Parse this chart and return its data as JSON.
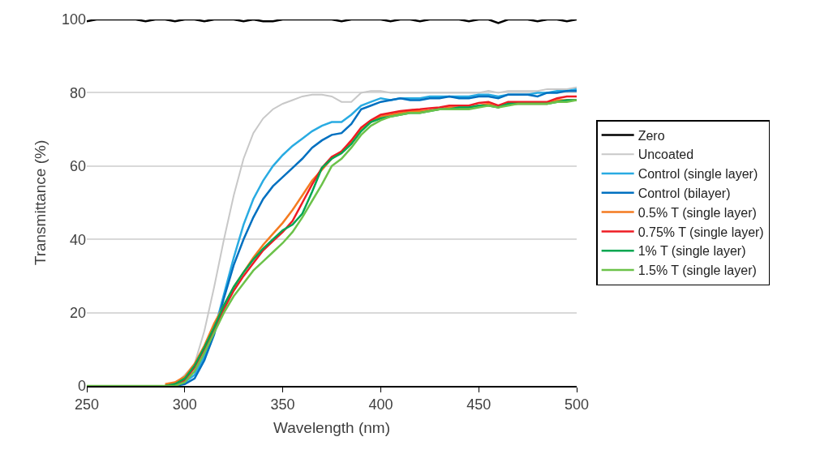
{
  "chart_data": {
    "type": "line",
    "xlabel": "Wavelength (nm)",
    "ylabel": "Transmittance (%)",
    "x": [
      250,
      255,
      260,
      265,
      270,
      275,
      280,
      285,
      290,
      295,
      300,
      305,
      310,
      315,
      320,
      325,
      330,
      335,
      340,
      345,
      350,
      355,
      360,
      365,
      370,
      375,
      380,
      385,
      390,
      395,
      400,
      405,
      410,
      415,
      420,
      425,
      430,
      435,
      440,
      445,
      450,
      455,
      460,
      465,
      470,
      475,
      480,
      485,
      490,
      495,
      500
    ],
    "xlim": [
      250,
      500
    ],
    "xticks": [
      250,
      300,
      350,
      400,
      450,
      500
    ],
    "ylim": [
      0,
      100
    ],
    "yticks": [
      0,
      20,
      40,
      60,
      80,
      100
    ],
    "grid": "y",
    "legend": "right",
    "marker": "none",
    "line_style": "solid",
    "series": [
      {
        "name": "Zero",
        "color": "#000000",
        "values": [
          99.5,
          100,
          100,
          100,
          100,
          100,
          99.5,
          100,
          100,
          99.5,
          100,
          100,
          99.5,
          100,
          100,
          100,
          99.5,
          100,
          99.5,
          99.5,
          100,
          100,
          100,
          100,
          100,
          100,
          99.5,
          100,
          100,
          100,
          100,
          99.5,
          100,
          100,
          99.5,
          100,
          100,
          100,
          100,
          99.5,
          100,
          100,
          99,
          100,
          100,
          100,
          99.5,
          100,
          100,
          99.5,
          100
        ]
      },
      {
        "name": "Uncoated",
        "color": "#c8c8c8",
        "values": [
          null,
          null,
          null,
          null,
          null,
          null,
          null,
          null,
          0,
          0.5,
          3,
          6,
          15,
          27,
          40,
          52,
          62,
          69,
          73,
          75.5,
          77,
          78,
          79,
          79.5,
          79.5,
          79,
          77.5,
          77.5,
          80,
          80.5,
          80.5,
          80,
          80,
          80,
          80,
          80,
          80,
          80,
          80,
          80,
          80,
          80.5,
          80,
          80.5,
          80.5,
          80.5,
          80.5,
          81,
          81,
          81,
          81.5
        ]
      },
      {
        "name": "Control (single layer)",
        "color": "#29abe2",
        "values": [
          null,
          null,
          null,
          null,
          null,
          null,
          null,
          null,
          0,
          0,
          1,
          3,
          8,
          15,
          25,
          35,
          44,
          51,
          56,
          60,
          63,
          65.5,
          67.5,
          69.5,
          71,
          72,
          72,
          74,
          76.5,
          77.5,
          78.5,
          78,
          78.5,
          78.5,
          78.5,
          79,
          79,
          79,
          79,
          79,
          79.5,
          79.5,
          79,
          79.5,
          79.5,
          79.5,
          80,
          80,
          80.5,
          80.5,
          81
        ]
      },
      {
        "name": "Control (bilayer)",
        "color": "#0070c0",
        "values": [
          null,
          null,
          null,
          null,
          null,
          null,
          null,
          null,
          0,
          0,
          0.5,
          2,
          7,
          14,
          24,
          33,
          40,
          46,
          51,
          54.5,
          57,
          59.5,
          62,
          65,
          67,
          68.5,
          69,
          71.5,
          75.5,
          76.5,
          77.5,
          78,
          78.5,
          78,
          78,
          78.5,
          78.5,
          79,
          78.5,
          78.5,
          79,
          79,
          78.5,
          79.5,
          79.5,
          79.5,
          79,
          80,
          80,
          80.5,
          80.5
        ]
      },
      {
        "name": "0.5% T (single layer)",
        "color": "#f47b20",
        "values": [
          null,
          null,
          null,
          null,
          null,
          null,
          null,
          null,
          0.5,
          1,
          2.5,
          6,
          11,
          17,
          22,
          27,
          31,
          35,
          38.5,
          41.5,
          44.5,
          48,
          52,
          56,
          59,
          62,
          64,
          66.5,
          70,
          72,
          73.5,
          74,
          74.5,
          75,
          75,
          75.2,
          75.5,
          76,
          76,
          76,
          76.5,
          77,
          76,
          77,
          77,
          77,
          77,
          77,
          78,
          78,
          78
        ]
      },
      {
        "name": "0.75% T (single layer)",
        "color": "#ee1c24",
        "values": [
          null,
          null,
          null,
          null,
          null,
          null,
          null,
          null,
          0,
          0.5,
          1.5,
          5,
          10,
          15.5,
          21,
          26,
          30,
          33.5,
          37,
          39.5,
          42,
          45,
          50,
          55,
          59.5,
          62.5,
          64,
          67,
          70.5,
          72.5,
          74,
          74.5,
          75,
          75.3,
          75.5,
          75.8,
          76,
          76.5,
          76.5,
          76.5,
          77.2,
          77.5,
          76.5,
          77.5,
          77.5,
          77.5,
          77.5,
          77.5,
          78.5,
          79,
          79
        ]
      },
      {
        "name": "1% T (single layer)",
        "color": "#00a651",
        "values": [
          null,
          null,
          null,
          null,
          null,
          null,
          null,
          null,
          0,
          0.5,
          2,
          5.5,
          10.5,
          16,
          22,
          27,
          31,
          34.5,
          37.5,
          40,
          42.5,
          44,
          47,
          53,
          59.5,
          62,
          63.5,
          66,
          69.5,
          72,
          73,
          73.5,
          74,
          74.5,
          74.5,
          75,
          75.5,
          75.5,
          76,
          76,
          76.5,
          76.5,
          76,
          77,
          77,
          77,
          77,
          77,
          77.5,
          78,
          78
        ]
      },
      {
        "name": "1.5% T (single layer)",
        "color": "#6cc24a",
        "values": [
          0,
          0,
          0,
          0,
          0,
          0,
          0,
          0,
          0,
          0,
          1,
          4,
          9,
          14.5,
          20,
          24.5,
          28,
          31.5,
          34,
          36.5,
          39,
          42,
          46,
          50.5,
          55,
          60,
          62,
          65,
          68.5,
          71,
          72.5,
          73.5,
          74,
          74.5,
          74.5,
          75,
          75.5,
          75.5,
          75.5,
          75.5,
          76,
          76.5,
          76,
          76.5,
          77,
          77,
          77,
          77,
          77.5,
          77.5,
          78
        ]
      }
    ]
  }
}
